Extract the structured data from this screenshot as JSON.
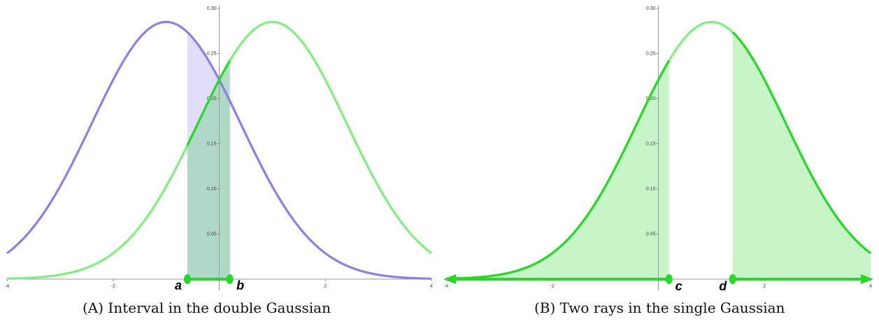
{
  "chart_data": [
    {
      "type": "area",
      "caption_prefix": "(A)",
      "caption": "Interval in the double Gaussian",
      "xlim": [
        -4,
        4
      ],
      "ylim": [
        0,
        0.3
      ],
      "x_ticks": [
        -4,
        -2,
        2,
        4
      ],
      "x_tick_labels": [
        "-4",
        "-2",
        "2",
        "4"
      ],
      "y_ticks": [
        0.05,
        0.1,
        0.15,
        0.2,
        0.25,
        0.3
      ],
      "y_tick_labels": [
        "0.05",
        "0.10",
        "0.15",
        "0.20",
        "0.25",
        "0.30"
      ],
      "grid": false,
      "series": [
        {
          "mean": -1,
          "sigma": 1.4,
          "peak": 0.285,
          "color": "#8f7ded"
        },
        {
          "mean": 1,
          "sigma": 1.4,
          "peak": 0.285,
          "color": "#7ef07e"
        }
      ],
      "shaded_interval": [
        -0.6,
        0.2
      ],
      "interval_labels": [
        "a",
        "b"
      ]
    },
    {
      "type": "area",
      "caption_prefix": "(B)",
      "caption": "Two rays in the single Gaussian",
      "xlim": [
        -4,
        4
      ],
      "ylim": [
        0,
        0.3
      ],
      "x_ticks": [
        -4,
        -2,
        2,
        4
      ],
      "x_tick_labels": [
        "-4",
        "-2",
        "2",
        "4"
      ],
      "y_ticks": [
        0.05,
        0.1,
        0.15,
        0.2,
        0.25,
        0.3
      ],
      "y_tick_labels": [
        "0.05",
        "0.10",
        "0.15",
        "0.20",
        "0.25",
        "0.30"
      ],
      "grid": false,
      "series": [
        {
          "mean": 1,
          "sigma": 1.4,
          "peak": 0.285,
          "color": "#7ef07e"
        }
      ],
      "shaded_rays": [
        [
          -4,
          0.2
        ],
        [
          1.4,
          4
        ]
      ],
      "ray_labels": [
        "c",
        "d"
      ]
    }
  ],
  "colors": {
    "purple": "#8f7ded",
    "green_light": "#7ef07e",
    "green_dark": "#26d926",
    "green_fill": "#c8f5c8",
    "purple_fill": "#e0dbf8",
    "overlap_fill": "#a8d8c0"
  }
}
